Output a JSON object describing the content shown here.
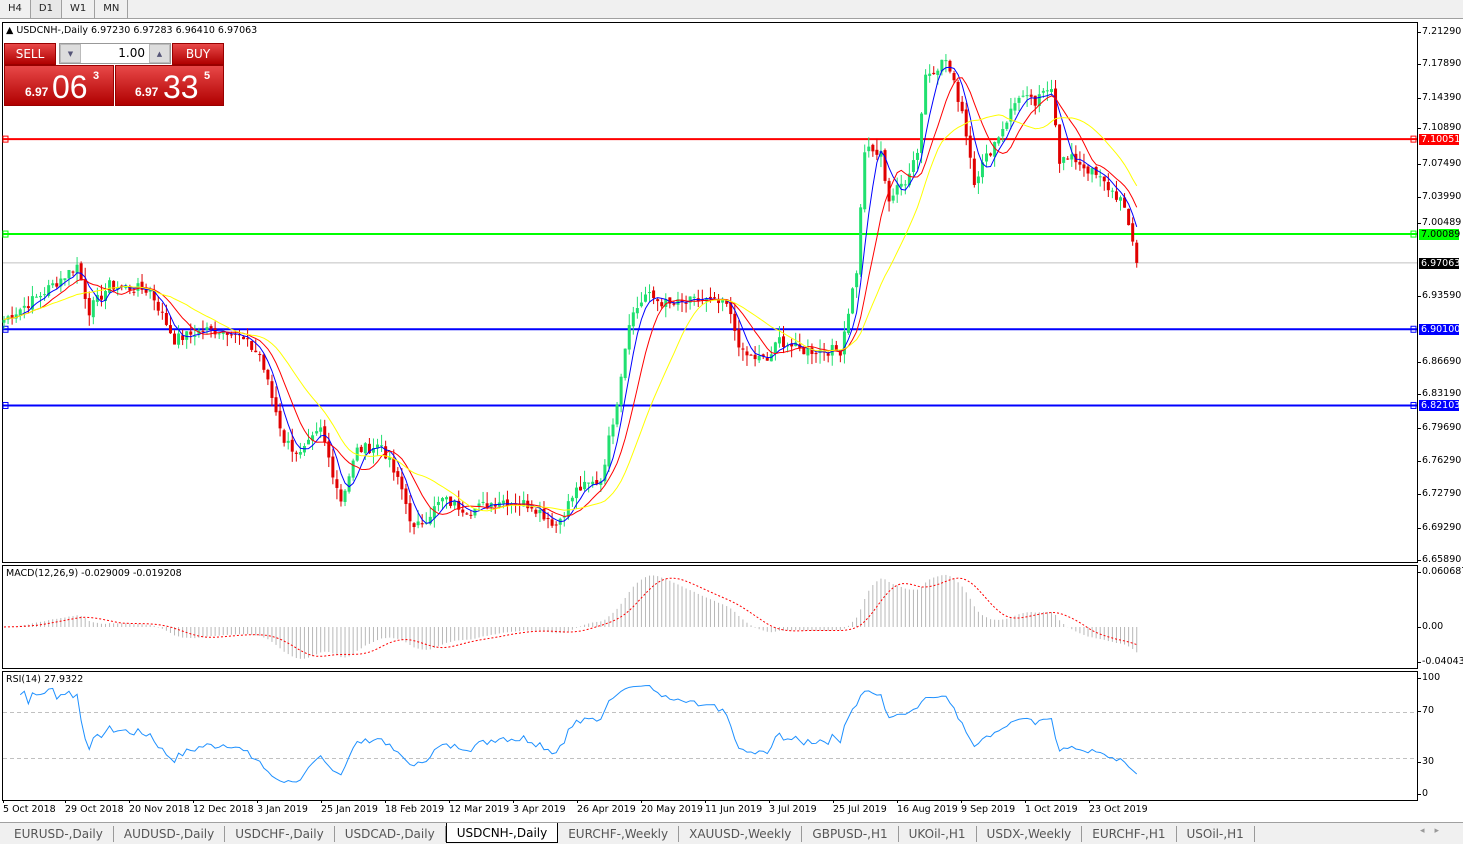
{
  "timeframes": [
    {
      "label": "H4"
    },
    {
      "label": "D1",
      "active": true
    },
    {
      "label": "W1"
    },
    {
      "label": "MN"
    }
  ],
  "chart_title": "USDCNH-,Daily  6.97230 6.97283 6.96410 6.97063",
  "trade_panel": {
    "sell_label": "SELL",
    "buy_label": "BUY",
    "lot": "1.00",
    "sell_small": "6.97",
    "sell_big": "06",
    "sell_sup": "3",
    "buy_small": "6.97",
    "buy_big": "33",
    "buy_sup": "5"
  },
  "price_axis": [
    "7.21290",
    "7.17890",
    "7.14390",
    "7.10890",
    "7.07490",
    "7.03990",
    "7.00489",
    "6.93590",
    "6.86690",
    "6.83190",
    "6.79690",
    "6.76290",
    "6.72790",
    "6.69290",
    "6.65890"
  ],
  "horizontal_lines": [
    {
      "price": 7.10051,
      "label": "7.10051",
      "color": "#ff0000"
    },
    {
      "price": 7.00089,
      "label": "7.00089",
      "color": "#00ff00"
    },
    {
      "price": 6.901,
      "label": "6.90100",
      "color": "#0000ff"
    },
    {
      "price": 6.82103,
      "label": "6.82103",
      "color": "#0000ff"
    }
  ],
  "current_price": {
    "price": 6.97063,
    "label": "6.97063"
  },
  "macd": {
    "label": "MACD(12,26,9) -0.029009 -0.019208",
    "axis": [
      "0.060687",
      "0.00",
      "-0.040432"
    ],
    "max": 0.060687,
    "min": -0.040432
  },
  "rsi": {
    "label": "RSI(14) 27.9322",
    "axis": [
      "100",
      "70",
      "30",
      "0"
    ]
  },
  "x_labels": [
    "5 Oct 2018",
    "29 Oct 2018",
    "20 Nov 2018",
    "12 Dec 2018",
    "3 Jan 2019",
    "25 Jan 2019",
    "18 Feb 2019",
    "12 Mar 2019",
    "3 Apr 2019",
    "26 Apr 2019",
    "20 May 2019",
    "11 Jun 2019",
    "3 Jul 2019",
    "25 Jul 2019",
    "16 Aug 2019",
    "9 Sep 2019",
    "1 Oct 2019",
    "23 Oct 2019"
  ],
  "tabs": [
    {
      "label": "EURUSD-,Daily"
    },
    {
      "label": "AUDUSD-,Daily"
    },
    {
      "label": "USDCHF-,Daily"
    },
    {
      "label": "USDCAD-,Daily"
    },
    {
      "label": "USDCNH-,Daily",
      "active": true
    },
    {
      "label": "EURCHF-,Weekly"
    },
    {
      "label": "XAUUSD-,Weekly"
    },
    {
      "label": "GBPUSD-,H1"
    },
    {
      "label": "UKOil-,H1"
    },
    {
      "label": "USDX-,Weekly"
    },
    {
      "label": "EURCHF-,H1"
    },
    {
      "label": "USOil-,H1"
    }
  ],
  "chart_data": {
    "type": "candlestick",
    "symbol": "USDCNH-",
    "timeframe": "Daily",
    "ylim": [
      6.6589,
      7.2129
    ],
    "close_anchors": [
      [
        0,
        6.911
      ],
      [
        9,
        6.937
      ],
      [
        18,
        6.968
      ],
      [
        21,
        6.921
      ],
      [
        26,
        6.947
      ],
      [
        36,
        6.942
      ],
      [
        42,
        6.89
      ],
      [
        49,
        6.9
      ],
      [
        56,
        6.9
      ],
      [
        63,
        6.874
      ],
      [
        69,
        6.785
      ],
      [
        73,
        6.769
      ],
      [
        78,
        6.795
      ],
      [
        83,
        6.722
      ],
      [
        87,
        6.774
      ],
      [
        93,
        6.78
      ],
      [
        98,
        6.732
      ],
      [
        101,
        6.69
      ],
      [
        108,
        6.722
      ],
      [
        115,
        6.711
      ],
      [
        122,
        6.722
      ],
      [
        130,
        6.717
      ],
      [
        136,
        6.696
      ],
      [
        141,
        6.732
      ],
      [
        147,
        6.743
      ],
      [
        151,
        6.827
      ],
      [
        154,
        6.911
      ],
      [
        158,
        6.937
      ],
      [
        164,
        6.926
      ],
      [
        172,
        6.932
      ],
      [
        178,
        6.926
      ],
      [
        182,
        6.874
      ],
      [
        188,
        6.868
      ],
      [
        191,
        6.89
      ],
      [
        196,
        6.879
      ],
      [
        206,
        6.879
      ],
      [
        210,
        6.963
      ],
      [
        212,
        7.089
      ],
      [
        216,
        7.084
      ],
      [
        218,
        7.037
      ],
      [
        222,
        7.058
      ],
      [
        225,
        7.089
      ],
      [
        227,
        7.168
      ],
      [
        232,
        7.184
      ],
      [
        236,
        7.131
      ],
      [
        239,
        7.058
      ],
      [
        243,
        7.089
      ],
      [
        247,
        7.121
      ],
      [
        250,
        7.147
      ],
      [
        254,
        7.137
      ],
      [
        258,
        7.158
      ],
      [
        260,
        7.079
      ],
      [
        264,
        7.079
      ],
      [
        270,
        7.058
      ],
      [
        275,
        7.037
      ],
      [
        278,
        6.995
      ],
      [
        279,
        6.97063
      ]
    ],
    "moving_averages": [
      {
        "period": 5,
        "color": "#0000ff"
      },
      {
        "period": 10,
        "color": "#ff0000"
      },
      {
        "period": 20,
        "color": "#ffff00"
      }
    ],
    "bull_color": "#20e070",
    "bear_color": "#e00000"
  }
}
